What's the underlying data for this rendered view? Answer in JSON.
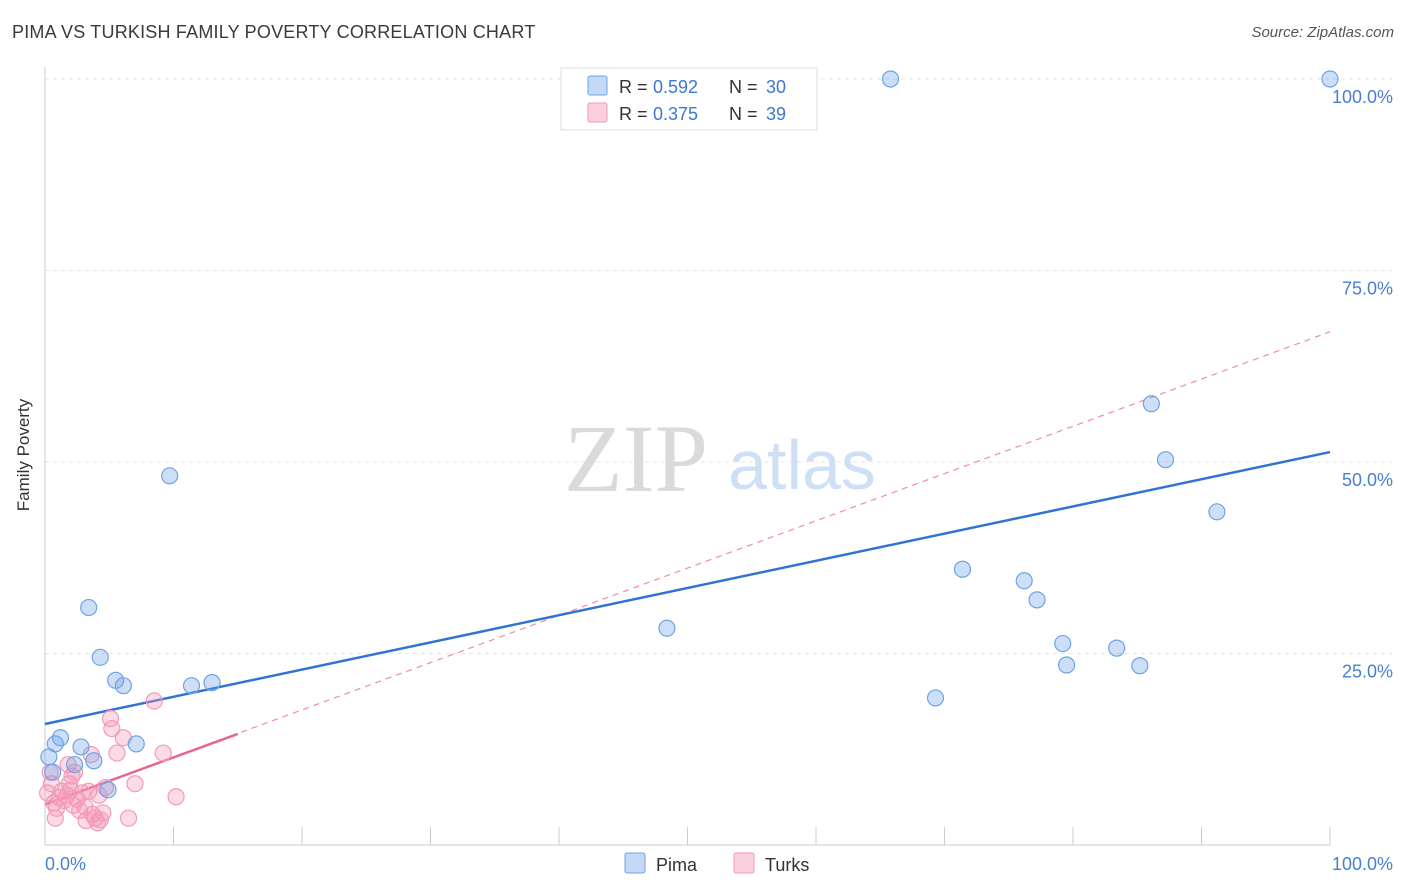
{
  "title": "PIMA VS TURKISH FAMILY POVERTY CORRELATION CHART",
  "source": "Source: ZipAtlas.com",
  "colors": {
    "pima": "#6fa3e6",
    "pima_line": "#2f73d3",
    "turks": "#f49ab6",
    "turks_line": "#e8668e",
    "axis_label": "#4a7fcf"
  },
  "chart_data": {
    "type": "scatter",
    "title": "PIMA VS TURKISH FAMILY POVERTY CORRELATION CHART",
    "xlabel": "",
    "ylabel": "Family Poverty",
    "xlim": [
      0,
      100
    ],
    "ylim": [
      0,
      100
    ],
    "x_tick_labels": [
      "0.0%",
      "100.0%"
    ],
    "y_tick_values": [
      25,
      50,
      75,
      100
    ],
    "y_tick_labels": [
      "25.0%",
      "50.0%",
      "75.0%",
      "100.0%"
    ],
    "watermark": {
      "zip": "ZIP",
      "atlas": "atlas"
    },
    "legend_stats": [
      {
        "r_label": "R =",
        "r_value": "0.592",
        "n_label": "N =",
        "n_value": "30"
      },
      {
        "r_label": "R =",
        "r_value": "0.375",
        "n_label": "N =",
        "n_value": "39"
      }
    ],
    "series": [
      {
        "name": "Pima",
        "points": [
          [
            0.3,
            11.5
          ],
          [
            0.8,
            13.2
          ],
          [
            1.2,
            14.0
          ],
          [
            2.3,
            10.5
          ],
          [
            2.8,
            12.8
          ],
          [
            3.4,
            31.0
          ],
          [
            3.8,
            11.0
          ],
          [
            4.3,
            24.5
          ],
          [
            4.9,
            7.2
          ],
          [
            5.5,
            21.5
          ],
          [
            6.1,
            20.8
          ],
          [
            7.1,
            13.2
          ],
          [
            9.7,
            48.2
          ],
          [
            11.4,
            20.8
          ],
          [
            13.0,
            21.2
          ],
          [
            48.4,
            28.3
          ],
          [
            65.8,
            100.0
          ],
          [
            69.3,
            19.2
          ],
          [
            71.4,
            36.0
          ],
          [
            76.2,
            34.5
          ],
          [
            77.2,
            32.0
          ],
          [
            79.2,
            26.3
          ],
          [
            79.5,
            23.5
          ],
          [
            83.4,
            25.7
          ],
          [
            85.2,
            23.4
          ],
          [
            86.1,
            57.6
          ],
          [
            87.2,
            50.3
          ],
          [
            91.2,
            43.5
          ],
          [
            100.0,
            100.0
          ],
          [
            0.6,
            9.5
          ]
        ],
        "trend": {
          "x": [
            0,
            100
          ],
          "y": [
            15.8,
            51.3
          ]
        }
      },
      {
        "name": "Turks",
        "points": [
          [
            0.2,
            6.8
          ],
          [
            0.4,
            9.5
          ],
          [
            0.5,
            8.0
          ],
          [
            0.7,
            5.5
          ],
          [
            0.9,
            4.8
          ],
          [
            1.1,
            6.2
          ],
          [
            1.3,
            7.0
          ],
          [
            1.5,
            5.8
          ],
          [
            1.7,
            6.5
          ],
          [
            1.9,
            8.0
          ],
          [
            2.0,
            7.2
          ],
          [
            2.2,
            5.2
          ],
          [
            2.3,
            9.5
          ],
          [
            2.5,
            6.0
          ],
          [
            2.7,
            4.5
          ],
          [
            2.9,
            6.8
          ],
          [
            3.1,
            5.0
          ],
          [
            3.2,
            3.2
          ],
          [
            3.4,
            7.0
          ],
          [
            3.6,
            11.8
          ],
          [
            3.7,
            4.0
          ],
          [
            3.9,
            3.5
          ],
          [
            4.1,
            2.9
          ],
          [
            4.2,
            6.5
          ],
          [
            4.3,
            3.3
          ],
          [
            4.5,
            4.2
          ],
          [
            4.7,
            7.5
          ],
          [
            5.1,
            16.5
          ],
          [
            5.2,
            15.2
          ],
          [
            5.6,
            12.0
          ],
          [
            6.1,
            14.0
          ],
          [
            6.5,
            3.5
          ],
          [
            7.0,
            8.0
          ],
          [
            8.5,
            18.8
          ],
          [
            9.2,
            12.0
          ],
          [
            10.2,
            6.3
          ],
          [
            0.8,
            3.5
          ],
          [
            1.8,
            10.5
          ],
          [
            2.1,
            9.0
          ]
        ],
        "trend": {
          "x": [
            0,
            15
          ],
          "y": [
            5.3,
            14.5
          ]
        },
        "trend_extended": {
          "x": [
            0,
            100
          ],
          "y": [
            5.3,
            67.0
          ]
        }
      }
    ]
  },
  "legend_bottom": [
    "Pima",
    "Turks"
  ]
}
